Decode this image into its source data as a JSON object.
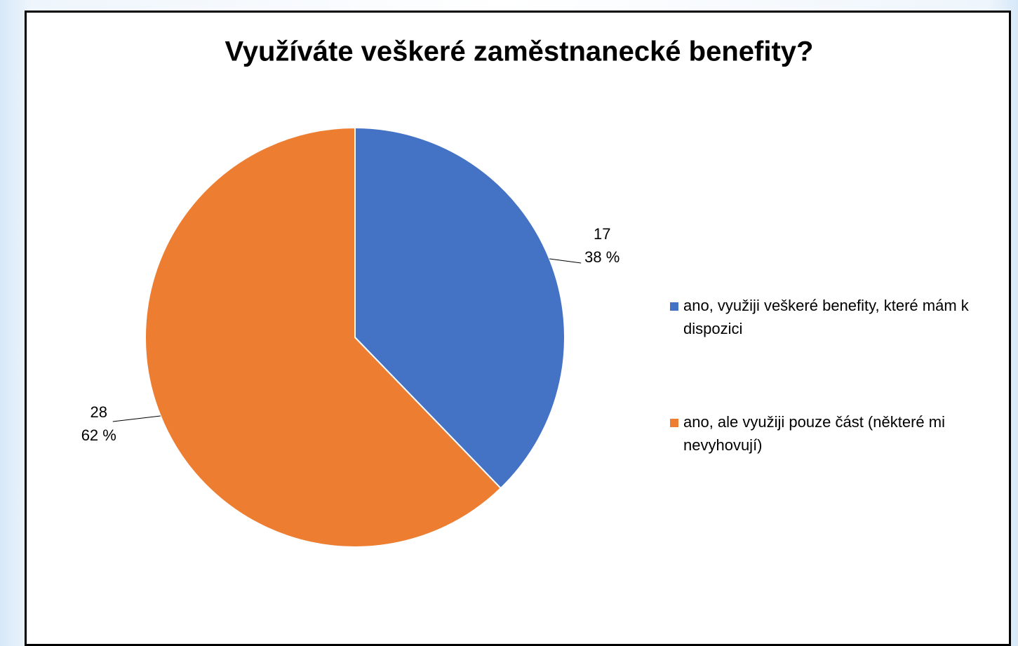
{
  "chart_data": {
    "type": "pie",
    "title": "Využíváte veškeré zaměstnanecké benefity?",
    "categories": [
      "ano, využiji veškeré benefity, které mám k dispozici",
      "ano, ale využiji pouze část (některé mi nevyhovují)"
    ],
    "values": [
      17,
      28
    ],
    "percents": [
      38,
      62
    ],
    "percent_labels": [
      "38 %",
      "62 %"
    ],
    "colors": [
      "#4472c4",
      "#ed7d31"
    ],
    "legend": "right"
  }
}
